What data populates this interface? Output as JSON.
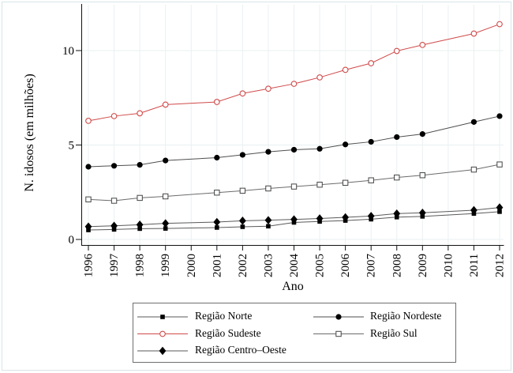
{
  "figure": {
    "background": "#ffffff",
    "border_color": "#d9e4e9"
  },
  "chart": {
    "y_axis_label": "N. idosos (em milhões)",
    "x_axis_label": "Ano"
  },
  "colors": {
    "red_series": "#d04a4a",
    "black_marker": "#000000",
    "black_line": "#5a5a5a",
    "gridline": "#eaf0f2",
    "axis": "#111111",
    "legend_border": "#6e6e6e"
  },
  "chart_data": {
    "type": "line",
    "title": "",
    "xlabel": "Ano",
    "ylabel": "N. idosos (em milhões)",
    "x_tick_labels": [
      "1996",
      "1997",
      "1998",
      "1999",
      "2000",
      "2001",
      "2002",
      "2003",
      "2004",
      "2005",
      "2006",
      "2007",
      "2008",
      "2009",
      "2010",
      "2011",
      "2012"
    ],
    "y_ticks": [
      0,
      5,
      10
    ],
    "xlim": [
      1995.7,
      2012.2
    ],
    "ylim": [
      -0.3,
      12.5
    ],
    "grid": true,
    "legend_position": "bottom-center",
    "x": [
      1996,
      1997,
      1998,
      1999,
      2001,
      2002,
      2003,
      2004,
      2005,
      2006,
      2007,
      2008,
      2009,
      2011,
      2012
    ],
    "series": [
      {
        "name": "Região Norte",
        "marker": "filled-square",
        "color": "#000000",
        "line_color": "#5a5a5a",
        "values": [
          0.5,
          0.53,
          0.57,
          0.58,
          0.63,
          0.67,
          0.7,
          0.9,
          0.95,
          1.0,
          1.07,
          1.18,
          1.22,
          1.37,
          1.47
        ]
      },
      {
        "name": "Região Nordeste",
        "marker": "filled-circle",
        "color": "#000000",
        "line_color": "#4f4f4f",
        "values": [
          3.85,
          3.9,
          3.95,
          4.18,
          4.33,
          4.48,
          4.64,
          4.75,
          4.8,
          5.03,
          5.17,
          5.42,
          5.58,
          6.22,
          6.53
        ]
      },
      {
        "name": "Região Sudeste",
        "marker": "open-circle",
        "color": "#d04a4a",
        "line_color": "#d04a4a",
        "values": [
          6.28,
          6.53,
          6.68,
          7.14,
          7.28,
          7.73,
          7.98,
          8.24,
          8.58,
          8.98,
          9.33,
          9.98,
          10.3,
          10.9,
          11.4
        ]
      },
      {
        "name": "Região Sul",
        "marker": "open-square",
        "color": "#454545",
        "line_color": "#6b6b6b",
        "values": [
          2.12,
          2.05,
          2.2,
          2.28,
          2.48,
          2.58,
          2.7,
          2.8,
          2.9,
          3.0,
          3.13,
          3.28,
          3.4,
          3.7,
          3.97
        ]
      },
      {
        "name": "Região Centro–Oeste",
        "marker": "filled-diamond",
        "color": "#000000",
        "line_color": "#5a5a5a",
        "values": [
          0.68,
          0.72,
          0.78,
          0.85,
          0.92,
          0.99,
          1.02,
          1.06,
          1.11,
          1.17,
          1.24,
          1.37,
          1.41,
          1.55,
          1.69
        ]
      }
    ]
  },
  "legend": {
    "columns": [
      [
        {
          "label": "Região Norte",
          "series": 0
        },
        {
          "label": "Região Sudeste",
          "series": 2
        },
        {
          "label": "Região Centro–Oeste",
          "series": 4
        }
      ],
      [
        {
          "label": "Região Nordeste",
          "series": 1
        },
        {
          "label": "Região Sul",
          "series": 3
        }
      ]
    ]
  }
}
